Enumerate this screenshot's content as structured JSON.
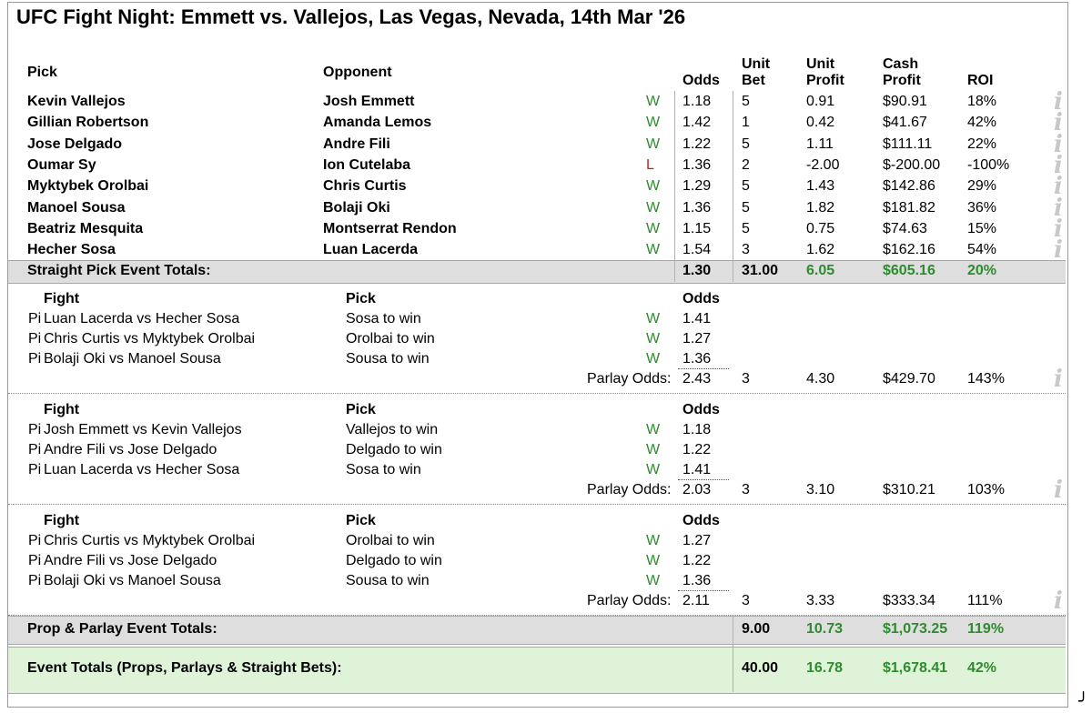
{
  "title": "UFC Fight Night: Emmett vs. Vallejos, Las Vegas, Nevada, 14th Mar '26",
  "headers": {
    "pick": "Pick",
    "opponent": "Opponent",
    "odds": "Odds",
    "unit_bet_1": "Unit",
    "unit_bet_2": "Bet",
    "unit_profit_1": "Unit",
    "unit_profit_2": "Profit",
    "cash_profit_1": "Cash",
    "cash_profit_2": "Profit",
    "roi": "ROI"
  },
  "straight_picks": [
    {
      "pick": "Kevin Vallejos",
      "opponent": "Josh Emmett",
      "result": "W",
      "odds": "1.18",
      "unit_bet": "5",
      "unit_profit": "0.91",
      "cash_profit": "$90.91",
      "roi": "18%"
    },
    {
      "pick": "Gillian Robertson",
      "opponent": "Amanda Lemos",
      "result": "W",
      "odds": "1.42",
      "unit_bet": "1",
      "unit_profit": "0.42",
      "cash_profit": "$41.67",
      "roi": "42%"
    },
    {
      "pick": "Jose Delgado",
      "opponent": "Andre Fili",
      "result": "W",
      "odds": "1.22",
      "unit_bet": "5",
      "unit_profit": "1.11",
      "cash_profit": "$111.11",
      "roi": "22%"
    },
    {
      "pick": "Oumar Sy",
      "opponent": "Ion Cutelaba",
      "result": "L",
      "odds": "1.36",
      "unit_bet": "2",
      "unit_profit": "-2.00",
      "cash_profit": "$-200.00",
      "roi": "-100%"
    },
    {
      "pick": "Myktybek Orolbai",
      "opponent": "Chris Curtis",
      "result": "W",
      "odds": "1.29",
      "unit_bet": "5",
      "unit_profit": "1.43",
      "cash_profit": "$142.86",
      "roi": "29%"
    },
    {
      "pick": "Manoel Sousa",
      "opponent": "Bolaji Oki",
      "result": "W",
      "odds": "1.36",
      "unit_bet": "5",
      "unit_profit": "1.82",
      "cash_profit": "$181.82",
      "roi": "36%"
    },
    {
      "pick": "Beatriz Mesquita",
      "opponent": "Montserrat Rendon",
      "result": "W",
      "odds": "1.15",
      "unit_bet": "5",
      "unit_profit": "0.75",
      "cash_profit": "$74.63",
      "roi": "15%"
    },
    {
      "pick": "Hecher Sosa",
      "opponent": "Luan Lacerda",
      "result": "W",
      "odds": "1.54",
      "unit_bet": "3",
      "unit_profit": "1.62",
      "cash_profit": "$162.16",
      "roi": "54%"
    }
  ],
  "straight_totals": {
    "label": "Straight Pick Event Totals:",
    "odds": "1.30",
    "unit_bet": "31.00",
    "unit_profit": "6.05",
    "cash_profit": "$605.16",
    "roi": "20%"
  },
  "parlay_headers": {
    "fight": "Fight",
    "pick": "Pick",
    "odds": "Odds"
  },
  "parlays": [
    {
      "legs": [
        {
          "prefix": "Pi",
          "fight": "Luan Lacerda vs Hecher Sosa",
          "pick": "Sosa to win",
          "result": "W",
          "odds": "1.41"
        },
        {
          "prefix": "Pi",
          "fight": "Chris Curtis vs Myktybek Orolbai",
          "pick": "Orolbai to win",
          "result": "W",
          "odds": "1.27"
        },
        {
          "prefix": "Pi",
          "fight": "Bolaji Oki vs Manoel Sousa",
          "pick": "Sousa to win",
          "result": "W",
          "odds": "1.36"
        }
      ],
      "parlay_label": "Parlay Odds:",
      "parlay_odds": "2.43",
      "unit_bet": "3",
      "unit_profit": "4.30",
      "cash_profit": "$429.70",
      "roi": "143%"
    },
    {
      "legs": [
        {
          "prefix": "Pi",
          "fight": "Josh Emmett vs Kevin Vallejos",
          "pick": "Vallejos to win",
          "result": "W",
          "odds": "1.18"
        },
        {
          "prefix": "Pi",
          "fight": "Andre Fili vs Jose Delgado",
          "pick": "Delgado to win",
          "result": "W",
          "odds": "1.22"
        },
        {
          "prefix": "Pi",
          "fight": "Luan Lacerda vs Hecher Sosa",
          "pick": "Sosa to win",
          "result": "W",
          "odds": "1.41"
        }
      ],
      "parlay_label": "Parlay Odds:",
      "parlay_odds": "2.03",
      "unit_bet": "3",
      "unit_profit": "3.10",
      "cash_profit": "$310.21",
      "roi": "103%"
    },
    {
      "legs": [
        {
          "prefix": "Pi",
          "fight": "Chris Curtis vs Myktybek Orolbai",
          "pick": "Orolbai to win",
          "result": "W",
          "odds": "1.27"
        },
        {
          "prefix": "Pi",
          "fight": "Andre Fili vs Jose Delgado",
          "pick": "Delgado to win",
          "result": "W",
          "odds": "1.22"
        },
        {
          "prefix": "Pi",
          "fight": "Bolaji Oki vs Manoel Sousa",
          "pick": "Sousa to win",
          "result": "W",
          "odds": "1.36"
        }
      ],
      "parlay_label": "Parlay Odds:",
      "parlay_odds": "2.11",
      "unit_bet": "3",
      "unit_profit": "3.33",
      "cash_profit": "$333.34",
      "roi": "111%"
    }
  ],
  "prop_totals": {
    "label": "Prop & Parlay Event Totals:",
    "unit_bet": "9.00",
    "unit_profit": "10.73",
    "cash_profit": "$1,073.25",
    "roi": "119%"
  },
  "event_totals": {
    "label": "Event Totals (Props, Parlays & Straight Bets):",
    "unit_bet": "40.00",
    "unit_profit": "16.78",
    "cash_profit": "$1,678.41",
    "roi": "42%"
  },
  "icons": {
    "info": "info-icon",
    "corner": "corner-hook-icon"
  },
  "colors": {
    "win": "#2e8b2e",
    "loss": "#d02020",
    "total_band": "#dedede",
    "event_band": "#dff3d8"
  },
  "info_glyph": "i",
  "corner_glyph": "╯"
}
